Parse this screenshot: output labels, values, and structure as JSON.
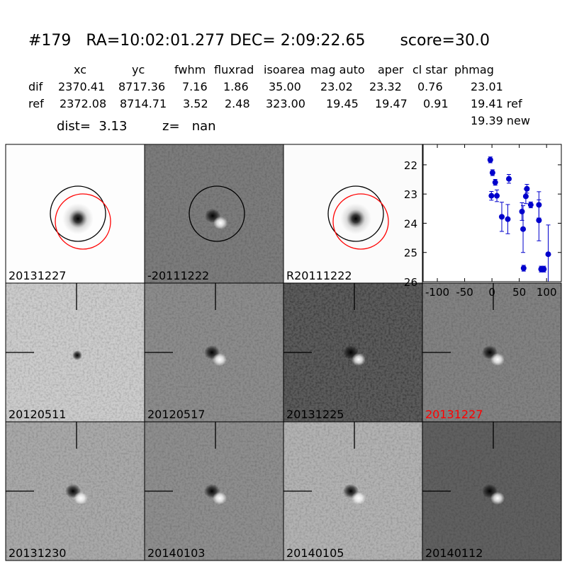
{
  "header": {
    "title": "#179   RA=10:02:01.277 DEC= 2:09:22.65       score=30.0"
  },
  "table": {
    "columns": [
      "xc",
      "yc",
      "fwhm",
      "fluxrad",
      "isoarea",
      "mag auto",
      "aper",
      "cl star",
      "phmag"
    ],
    "rows": [
      {
        "label": "dif",
        "cells": [
          "2370.41",
          "8717.36",
          "7.16",
          "1.86",
          "35.00",
          "23.02",
          "23.32",
          "0.76",
          "23.01"
        ]
      },
      {
        "label": "ref",
        "cells": [
          "2372.08",
          "8714.71",
          "3.52",
          "2.48",
          "323.00",
          "19.45",
          "19.47",
          "0.91",
          "19.41 ref"
        ]
      }
    ],
    "extra": "19.39 new"
  },
  "dist": "dist=  3.13",
  "z": "z=   nan",
  "panels": [
    {
      "label": "20131227"
    },
    {
      "label": "-20111222"
    },
    {
      "label": "R20111222"
    },
    {
      "label": "20120511"
    },
    {
      "label": "20120517"
    },
    {
      "label": "20131225"
    },
    {
      "label": "20131227",
      "color": "#ff0000"
    },
    {
      "label": "20131230"
    },
    {
      "label": "20140103"
    },
    {
      "label": "20140105"
    },
    {
      "label": "20140112"
    }
  ],
  "chart_data": {
    "type": "errorbar",
    "color": "#0000cc",
    "x": [
      -3,
      1,
      -1,
      6,
      9,
      18,
      29,
      31,
      55,
      57,
      58,
      62,
      64,
      71,
      86,
      86,
      90,
      95,
      103
    ],
    "values": [
      21.83,
      22.27,
      23.06,
      22.6,
      23.06,
      23.78,
      23.86,
      22.48,
      23.6,
      24.2,
      25.54,
      23.08,
      22.82,
      23.37,
      23.37,
      23.9,
      25.57,
      25.57,
      25.06
    ],
    "errors": [
      0.1,
      0.1,
      0.15,
      0.1,
      0.2,
      0.5,
      0.5,
      0.15,
      0.3,
      0.8,
      0.1,
      0.25,
      0.15,
      0.1,
      0.45,
      0.7,
      0.1,
      0.1,
      1
    ],
    "xlim": [
      -126,
      127
    ],
    "xticks": [
      -100,
      -50,
      0,
      50,
      100
    ],
    "ylim": [
      21.3,
      26
    ],
    "yticks": [
      22,
      23,
      24,
      25,
      26
    ],
    "invert_y": true
  }
}
